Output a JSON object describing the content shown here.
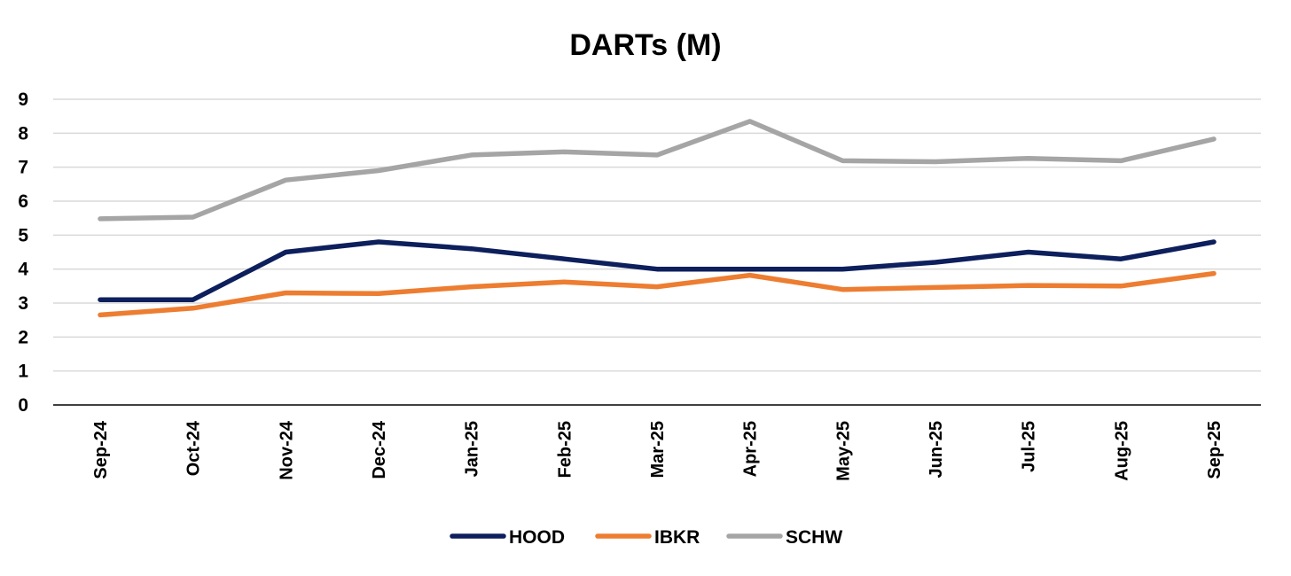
{
  "chart_data": {
    "type": "line",
    "title": "DARTs (M)",
    "xlabel": "",
    "ylabel": "",
    "ylim": [
      0,
      9
    ],
    "yticks": [
      0,
      1,
      2,
      3,
      4,
      5,
      6,
      7,
      8,
      9
    ],
    "grid": true,
    "legend_position": "bottom",
    "categories": [
      "Sep-24",
      "Oct-24",
      "Nov-24",
      "Dec-24",
      "Jan-25",
      "Feb-25",
      "Mar-25",
      "Apr-25",
      "May-25",
      "Jun-25",
      "Jul-25",
      "Aug-25",
      "Sep-25"
    ],
    "series": [
      {
        "name": "HOOD",
        "color": "#0d1f5c",
        "values": [
          3.1,
          3.1,
          4.5,
          4.8,
          4.6,
          4.3,
          4.0,
          4.0,
          4.0,
          4.2,
          4.5,
          4.3,
          4.8
        ]
      },
      {
        "name": "IBKR",
        "color": "#ed7d31",
        "values": [
          2.65,
          2.85,
          3.3,
          3.28,
          3.48,
          3.62,
          3.48,
          3.82,
          3.4,
          3.46,
          3.52,
          3.5,
          3.87
        ]
      },
      {
        "name": "SCHW",
        "color": "#a5a5a5",
        "values": [
          5.48,
          5.53,
          6.62,
          6.9,
          7.36,
          7.45,
          7.36,
          8.35,
          7.19,
          7.16,
          7.26,
          7.19,
          7.83
        ]
      }
    ]
  }
}
